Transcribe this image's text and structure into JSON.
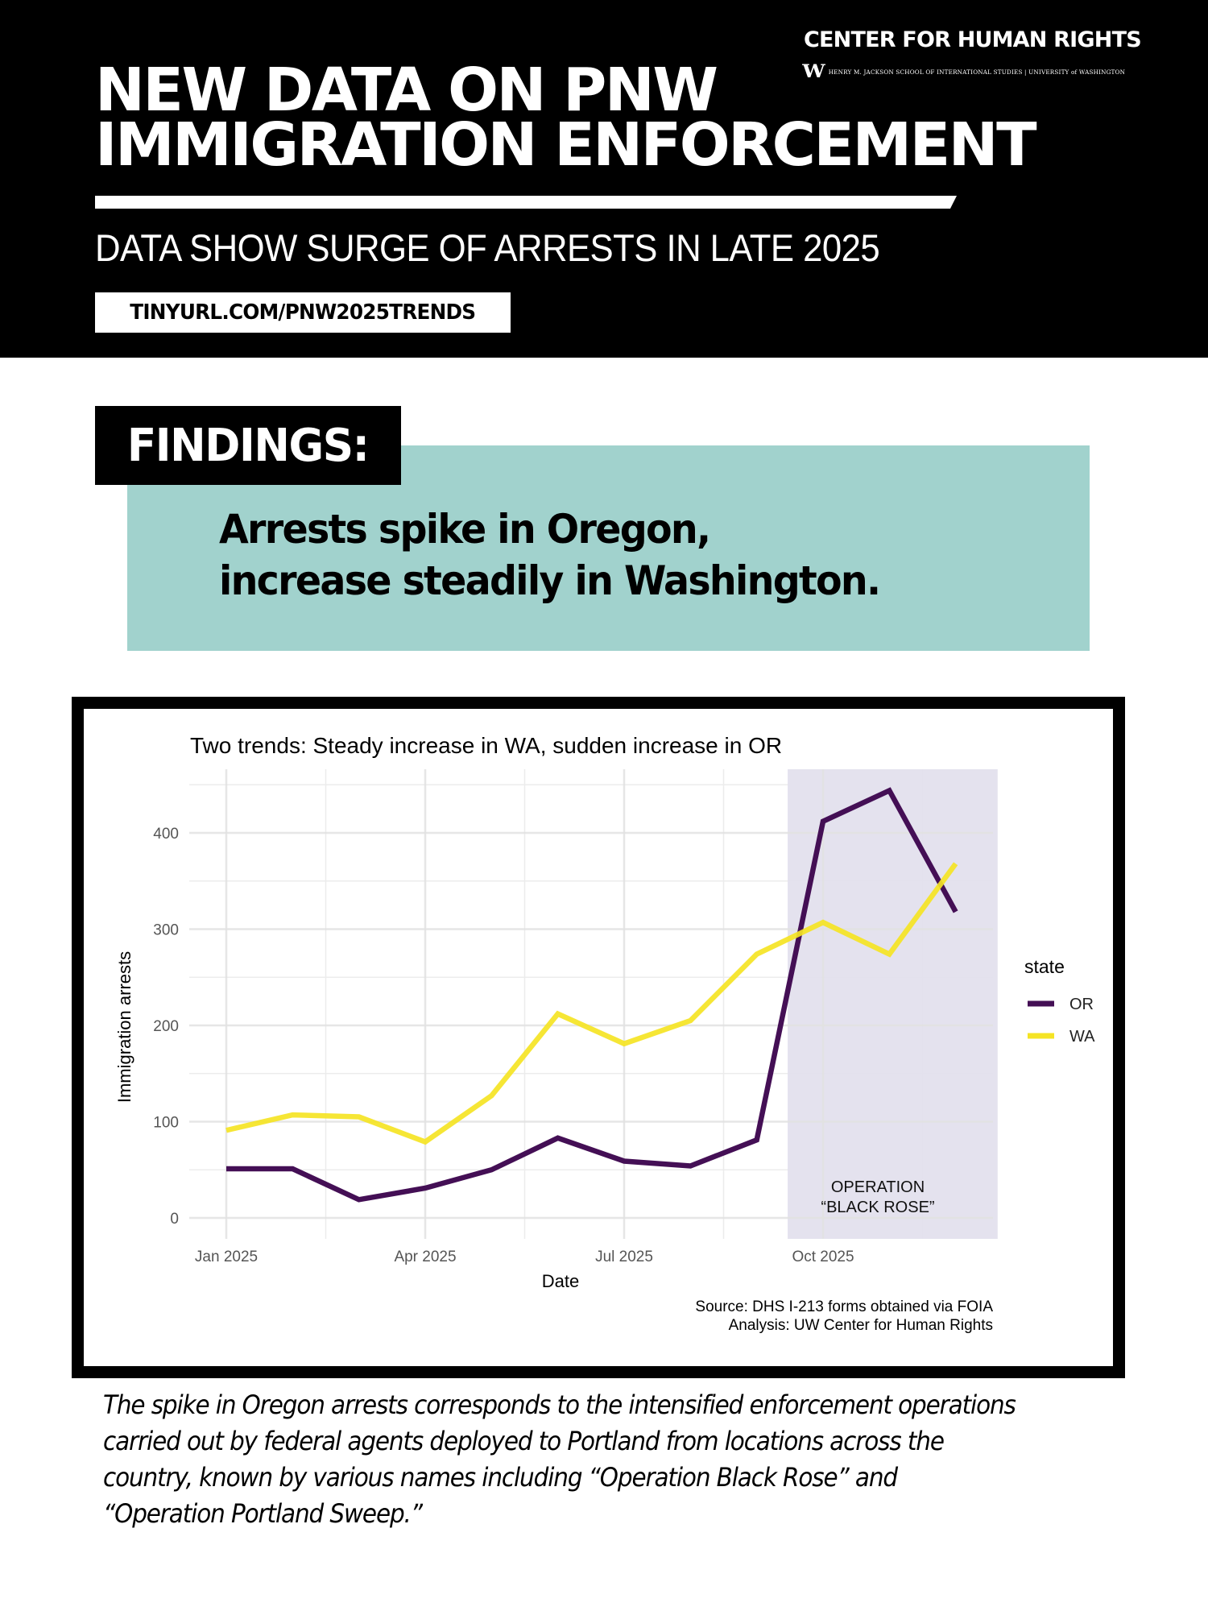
{
  "header": {
    "org_name": "CENTER FOR HUMAN RIGHTS",
    "org_logo_letter": "W",
    "org_subtitle": "HENRY M. JACKSON SCHOOL OF INTERNATIONAL STUDIES | UNIVERSITY of WASHINGTON",
    "title_line1": "NEW DATA ON PNW",
    "title_line2": "IMMIGRATION ENFORCEMENT",
    "subtitle": "DATA SHOW SURGE OF ARRESTS IN LATE 2025",
    "url": "TINYURL.COM/PNW2025TRENDS"
  },
  "findings": {
    "label": "FINDINGS:",
    "line1": "Arrests spike in Oregon,",
    "line2": "increase steadily in Washington."
  },
  "chart_data": {
    "type": "line",
    "title": "Two trends: Steady increase in WA, sudden increase in OR",
    "xlabel": "Date",
    "ylabel": "Immigration arrests",
    "x": [
      "2025-01",
      "2025-02",
      "2025-03",
      "2025-04",
      "2025-05",
      "2025-06",
      "2025-07",
      "2025-08",
      "2025-09",
      "2025-10",
      "2025-11",
      "2025-12"
    ],
    "x_ticks": [
      "Jan 2025",
      "Apr 2025",
      "Jul 2025",
      "Oct 2025"
    ],
    "y_ticks": [
      0,
      100,
      200,
      300,
      400
    ],
    "ylim": [
      -20,
      470
    ],
    "grid": true,
    "legend": {
      "title": "state",
      "position": "right"
    },
    "series": [
      {
        "name": "OR",
        "color": "#440f55",
        "values": [
          51,
          51,
          19,
          31,
          50,
          83,
          59,
          54,
          81,
          412,
          444,
          318
        ]
      },
      {
        "name": "WA",
        "color": "#f5e424",
        "values": [
          91,
          107,
          105,
          79,
          127,
          212,
          181,
          205,
          274,
          307,
          274,
          368
        ]
      }
    ],
    "shaded_region": {
      "label_line1": "OPERATION",
      "label_line2": "“BLACK ROSE”",
      "x_start": "2025-09-15",
      "x_end": "2025-12-20",
      "color": "#e3e0ed"
    },
    "source_line1": "Source: DHS I-213 forms obtained via FOIA",
    "source_line2": "Analysis: UW Center for Human Rights"
  },
  "caption": {
    "line1": "The spike in Oregon arrests corresponds to the intensified enforcement operations",
    "line2": "carried out by federal agents deployed to Portland from locations across the",
    "line3": "country, known by various names including “Operation Black Rose” and",
    "line4": "“Operation Portland Sweep.”"
  }
}
